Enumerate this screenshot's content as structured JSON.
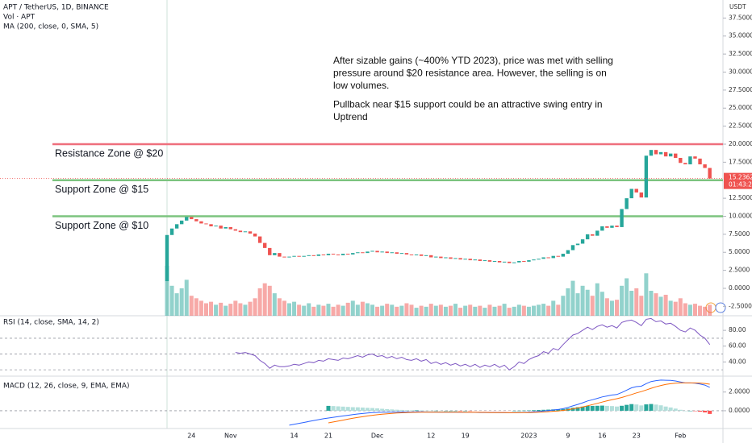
{
  "chart_data": [
    {
      "type": "candlestick",
      "title": "APT / TetherUS, 1D, BINANCE",
      "indicators": [
        "Vol · APT",
        "MA (200, close, 0, SMA, 5)"
      ],
      "y_unit": "USDT",
      "countdown": "01:43:27",
      "up_color": "#26a69a",
      "down_color": "#ef5350",
      "categories": [
        null,
        null,
        null,
        null,
        null,
        "24",
        null,
        null,
        null,
        null,
        null,
        null,
        null,
        "Nov",
        null,
        null,
        null,
        null,
        null,
        null,
        null,
        null,
        null,
        null,
        null,
        null,
        "14",
        null,
        null,
        null,
        null,
        null,
        null,
        "21",
        null,
        null,
        null,
        null,
        null,
        null,
        null,
        null,
        null,
        "Dec",
        null,
        null,
        null,
        null,
        null,
        null,
        null,
        null,
        null,
        null,
        "12",
        null,
        null,
        null,
        null,
        null,
        null,
        "19",
        null,
        null,
        null,
        null,
        null,
        null,
        null,
        null,
        null,
        null,
        null,
        null,
        "2023",
        null,
        null,
        null,
        null,
        null,
        null,
        null,
        "9",
        null,
        null,
        null,
        null,
        null,
        null,
        "16",
        null,
        null,
        null,
        null,
        null,
        null,
        "23",
        null,
        null,
        null,
        null,
        null,
        null,
        null,
        null,
        "Feb",
        null,
        null,
        null,
        null,
        null,
        null
      ],
      "open": [
        1.0,
        7.4,
        8.3,
        8.9,
        9.4,
        9.9,
        9.6,
        9.3,
        9.0,
        8.9,
        8.6,
        8.7,
        8.3,
        8.5,
        8.2,
        8.0,
        7.8,
        7.9,
        7.6,
        7.2,
        6.3,
        5.6,
        4.6,
        4.9,
        4.4,
        4.3,
        4.4,
        4.5,
        4.4,
        4.5,
        4.6,
        4.5,
        4.7,
        4.6,
        4.8,
        4.7,
        4.6,
        4.8,
        4.7,
        4.9,
        5.0,
        4.9,
        5.1,
        5.2,
        5.0,
        5.1,
        4.9,
        5.0,
        4.8,
        4.9,
        4.7,
        4.6,
        4.7,
        4.5,
        4.6,
        4.3,
        4.4,
        4.2,
        4.3,
        4.1,
        4.2,
        4.0,
        4.1,
        3.9,
        4.0,
        3.8,
        3.9,
        3.7,
        3.8,
        3.6,
        3.7,
        3.5,
        3.6,
        3.8,
        3.7,
        3.9,
        4.0,
        4.1,
        4.3,
        4.2,
        4.5,
        4.4,
        4.8,
        5.3,
        6.0,
        6.2,
        6.8,
        7.5,
        7.3,
        8.0,
        8.6,
        8.4,
        8.7,
        8.5,
        11.0,
        12.5,
        13.8,
        13.3,
        12.6,
        18.4,
        19.2,
        18.6,
        18.9,
        18.3,
        18.7,
        18.1,
        17.4,
        17.2,
        18.3,
        18.0,
        17.2,
        16.7
      ],
      "close": [
        7.4,
        8.3,
        8.9,
        9.4,
        9.9,
        9.6,
        9.3,
        9.0,
        8.9,
        8.6,
        8.7,
        8.3,
        8.5,
        8.2,
        8.0,
        7.8,
        7.9,
        7.6,
        7.2,
        6.3,
        5.6,
        4.6,
        4.9,
        4.4,
        4.3,
        4.4,
        4.5,
        4.4,
        4.5,
        4.6,
        4.5,
        4.7,
        4.6,
        4.8,
        4.7,
        4.6,
        4.8,
        4.7,
        4.9,
        5.0,
        4.9,
        5.1,
        5.2,
        5.0,
        5.1,
        4.9,
        5.0,
        4.8,
        4.9,
        4.7,
        4.6,
        4.7,
        4.5,
        4.6,
        4.3,
        4.4,
        4.2,
        4.3,
        4.1,
        4.2,
        4.0,
        4.1,
        3.9,
        4.0,
        3.8,
        3.9,
        3.7,
        3.8,
        3.6,
        3.7,
        3.5,
        3.6,
        3.8,
        3.7,
        3.9,
        4.0,
        4.1,
        4.3,
        4.2,
        4.5,
        4.4,
        4.8,
        5.3,
        6.0,
        6.2,
        6.8,
        7.5,
        7.3,
        8.0,
        8.6,
        8.4,
        8.7,
        8.5,
        11.0,
        12.5,
        13.8,
        13.3,
        12.6,
        18.4,
        19.2,
        18.6,
        18.9,
        18.3,
        18.7,
        18.1,
        17.4,
        17.2,
        18.3,
        18.0,
        17.2,
        16.7,
        15.2362
      ],
      "volume": [
        100,
        60,
        45,
        55,
        72,
        40,
        35,
        30,
        25,
        28,
        22,
        26,
        20,
        24,
        30,
        25,
        22,
        28,
        35,
        55,
        65,
        60,
        45,
        35,
        30,
        25,
        28,
        22,
        20,
        25,
        18,
        22,
        20,
        24,
        18,
        22,
        20,
        26,
        30,
        22,
        28,
        25,
        22,
        18,
        20,
        24,
        22,
        18,
        20,
        25,
        22,
        16,
        20,
        18,
        24,
        20,
        22,
        18,
        20,
        24,
        16,
        20,
        22,
        18,
        20,
        16,
        22,
        18,
        20,
        24,
        16,
        18,
        22,
        20,
        18,
        20,
        22,
        24,
        20,
        30,
        22,
        40,
        55,
        70,
        45,
        60,
        52,
        40,
        65,
        48,
        35,
        30,
        32,
        60,
        75,
        50,
        55,
        40,
        85,
        50,
        45,
        38,
        42,
        30,
        28,
        35,
        25,
        22,
        24,
        20,
        18,
        22
      ],
      "vlim": [
        0,
        100
      ],
      "ylim": [
        -3.8,
        40
      ],
      "yticks": [
        {
          "value": 37.5,
          "label": "37.5000"
        },
        {
          "value": 35,
          "label": "35.0000"
        },
        {
          "value": 32.5,
          "label": "32.5000"
        },
        {
          "value": 30,
          "label": "30.0000"
        },
        {
          "value": 27.5,
          "label": "27.5000"
        },
        {
          "value": 25,
          "label": "25.0000"
        },
        {
          "value": 22.5,
          "label": "22.5000"
        },
        {
          "value": 20,
          "label": "20.0000"
        },
        {
          "value": 17.5,
          "label": "17.5000"
        },
        {
          "value": 12.5,
          "label": "12.5000"
        },
        {
          "value": 10,
          "label": "10.0000"
        },
        {
          "value": 7.5,
          "label": "7.5000"
        },
        {
          "value": 5,
          "label": "5.0000"
        },
        {
          "value": 2.5,
          "label": "2.5000"
        },
        {
          "value": 0,
          "label": "0.0000"
        },
        {
          "value": -2.5,
          "label": "-2.5000"
        }
      ],
      "levels": [
        {
          "value": 20,
          "label": "Resistance Zone @ $20",
          "color": "#ef6f7c"
        },
        {
          "value": 15,
          "label": "Support Zone @ $15",
          "color": "#7cc47f"
        },
        {
          "value": 10,
          "label": "Support Zone @ $10",
          "color": "#7cc47f"
        }
      ],
      "annotation": [
        [
          "After sizable gains (~400% YTD 2023), price was met with selling",
          "pressure around $20 resistance area. However, the selling is on",
          "low volumes."
        ],
        [
          "Pullback near $15 support could be an attractive swing entry in",
          "Uptrend"
        ]
      ]
    },
    {
      "type": "line",
      "title": "RSI (14, close, SMA, 14, 2)",
      "color": "#7e57c2",
      "values": [
        null,
        null,
        null,
        null,
        null,
        null,
        null,
        null,
        null,
        null,
        null,
        null,
        null,
        null,
        52,
        51,
        52,
        50,
        48,
        42,
        38,
        32,
        36,
        34,
        34,
        35,
        37,
        36,
        38,
        40,
        39,
        42,
        41,
        44,
        43,
        42,
        45,
        44,
        46,
        48,
        46,
        49,
        50,
        47,
        48,
        45,
        47,
        44,
        46,
        43,
        42,
        44,
        41,
        43,
        38,
        40,
        37,
        39,
        36,
        38,
        35,
        37,
        34,
        37,
        33,
        36,
        34,
        37,
        33,
        36,
        30,
        34,
        40,
        38,
        43,
        46,
        48,
        53,
        51,
        57,
        55,
        62,
        68,
        74,
        76,
        80,
        84,
        81,
        85,
        87,
        84,
        86,
        83,
        90,
        92,
        93,
        90,
        86,
        94,
        95,
        91,
        92,
        88,
        89,
        85,
        80,
        78,
        83,
        80,
        74,
        70,
        62
      ],
      "bands": [
        70,
        50,
        30
      ],
      "ylim": [
        22,
        98.5
      ],
      "yticks": [
        {
          "value": 80,
          "label": "80.00"
        },
        {
          "value": 60,
          "label": "60.00"
        },
        {
          "value": 40,
          "label": "40.00"
        }
      ]
    },
    {
      "type": "macd",
      "title": "MACD (12, 26, close, 9, EMA, EMA)",
      "macd_color": "#2962ff",
      "signal_color": "#ff6d00",
      "macd": [
        null,
        null,
        null,
        null,
        null,
        null,
        null,
        null,
        null,
        null,
        null,
        null,
        null,
        null,
        null,
        null,
        null,
        null,
        null,
        null,
        null,
        null,
        null,
        null,
        null,
        -1.55,
        -1.45,
        -1.35,
        -1.25,
        -1.15,
        -1.05,
        -0.95,
        -0.86,
        -0.78,
        -0.7,
        -0.63,
        -0.56,
        -0.49,
        -0.42,
        -0.35,
        -0.3,
        -0.25,
        -0.2,
        -0.18,
        -0.16,
        -0.15,
        -0.14,
        -0.14,
        -0.13,
        -0.13,
        -0.13,
        -0.12,
        -0.12,
        -0.13,
        -0.14,
        -0.14,
        -0.15,
        -0.15,
        -0.16,
        -0.16,
        -0.17,
        -0.17,
        -0.18,
        -0.18,
        -0.19,
        -0.19,
        -0.2,
        -0.2,
        -0.21,
        -0.21,
        -0.22,
        -0.21,
        -0.19,
        -0.18,
        -0.15,
        -0.12,
        -0.08,
        -0.03,
        0.02,
        0.08,
        0.13,
        0.22,
        0.35,
        0.52,
        0.68,
        0.85,
        1.05,
        1.18,
        1.32,
        1.48,
        1.58,
        1.68,
        1.74,
        1.95,
        2.2,
        2.45,
        2.58,
        2.62,
        2.9,
        3.12,
        3.22,
        3.28,
        3.26,
        3.24,
        3.18,
        3.08,
        2.98,
        2.98,
        2.95,
        2.86,
        2.74,
        2.5
      ],
      "signal": [
        null,
        null,
        null,
        null,
        null,
        null,
        null,
        null,
        null,
        null,
        null,
        null,
        null,
        null,
        null,
        null,
        null,
        null,
        null,
        null,
        null,
        null,
        null,
        null,
        null,
        null,
        null,
        null,
        null,
        null,
        null,
        null,
        null,
        -1.3,
        -1.2,
        -1.1,
        -1.0,
        -0.9,
        -0.8,
        -0.72,
        -0.64,
        -0.56,
        -0.49,
        -0.43,
        -0.37,
        -0.32,
        -0.28,
        -0.25,
        -0.22,
        -0.2,
        -0.18,
        -0.17,
        -0.16,
        -0.15,
        -0.15,
        -0.15,
        -0.15,
        -0.15,
        -0.16,
        -0.16,
        -0.16,
        -0.17,
        -0.17,
        -0.17,
        -0.18,
        -0.18,
        -0.19,
        -0.19,
        -0.2,
        -0.2,
        -0.21,
        -0.21,
        -0.2,
        -0.2,
        -0.19,
        -0.18,
        -0.16,
        -0.13,
        -0.1,
        -0.06,
        -0.02,
        0.04,
        0.11,
        0.2,
        0.3,
        0.41,
        0.53,
        0.66,
        0.79,
        0.93,
        1.06,
        1.18,
        1.29,
        1.42,
        1.57,
        1.74,
        1.91,
        2.05,
        2.22,
        2.4,
        2.56,
        2.7,
        2.81,
        2.89,
        2.95,
        2.98,
        2.98,
        2.98,
        2.98,
        2.96,
        2.92,
        2.84
      ],
      "histogram": [
        null,
        null,
        null,
        null,
        null,
        null,
        null,
        null,
        null,
        null,
        null,
        null,
        null,
        null,
        null,
        null,
        null,
        null,
        null,
        null,
        null,
        null,
        null,
        null,
        null,
        null,
        null,
        null,
        null,
        null,
        null,
        null,
        null,
        0.52,
        0.5,
        0.47,
        0.44,
        0.41,
        0.38,
        0.37,
        0.34,
        0.31,
        0.29,
        0.25,
        0.21,
        0.17,
        0.14,
        0.11,
        0.09,
        0.07,
        0.05,
        0.05,
        0.04,
        0.02,
        0.01,
        0.01,
        0,
        0,
        0,
        0,
        -0.01,
        0,
        -0.01,
        -0.01,
        -0.01,
        -0.01,
        -0.01,
        -0.01,
        -0.01,
        -0.01,
        -0.01,
        0,
        0.01,
        0.02,
        0.04,
        0.06,
        0.08,
        0.1,
        0.12,
        0.14,
        0.15,
        0.18,
        0.24,
        0.32,
        0.38,
        0.44,
        0.52,
        0.52,
        0.53,
        0.55,
        0.52,
        0.5,
        0.45,
        0.53,
        0.63,
        0.71,
        0.67,
        0.57,
        0.68,
        0.72,
        0.66,
        0.58,
        0.45,
        0.35,
        0.23,
        0.1,
        0,
        0,
        -0.03,
        -0.1,
        -0.18,
        -0.34
      ],
      "ylim": [
        -1.9,
        3.7
      ],
      "yticks": [
        {
          "value": 2,
          "label": "2.0000"
        },
        {
          "value": 0,
          "label": "0.0000"
        }
      ]
    }
  ]
}
